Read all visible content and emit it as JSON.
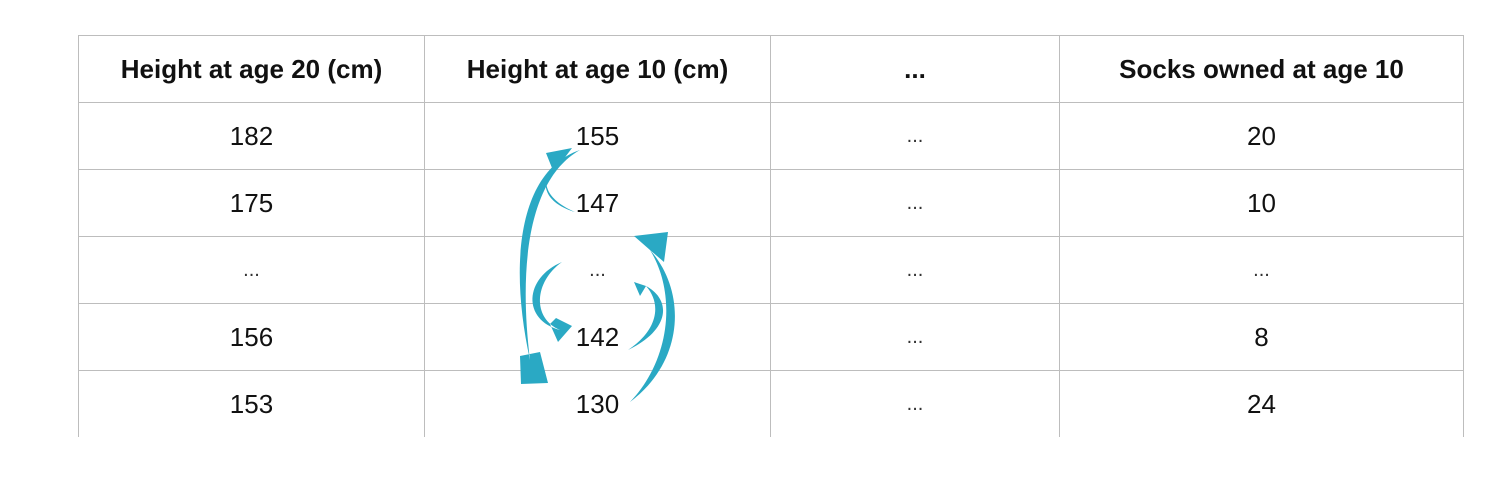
{
  "table": {
    "headers": [
      "Height at age 20 (cm)",
      "Height at age 10 (cm)",
      "...",
      "Socks owned at age 10"
    ],
    "rows": [
      [
        "182",
        "155",
        "...",
        "20"
      ],
      [
        "175",
        "147",
        "...",
        "10"
      ],
      [
        "...",
        "...",
        "...",
        "..."
      ],
      [
        "156",
        "142",
        "...",
        "8"
      ],
      [
        "153",
        "130",
        "...",
        "24"
      ]
    ]
  },
  "colors": {
    "arrow": "#2aa9c4",
    "grid": "#bdbdbd"
  }
}
